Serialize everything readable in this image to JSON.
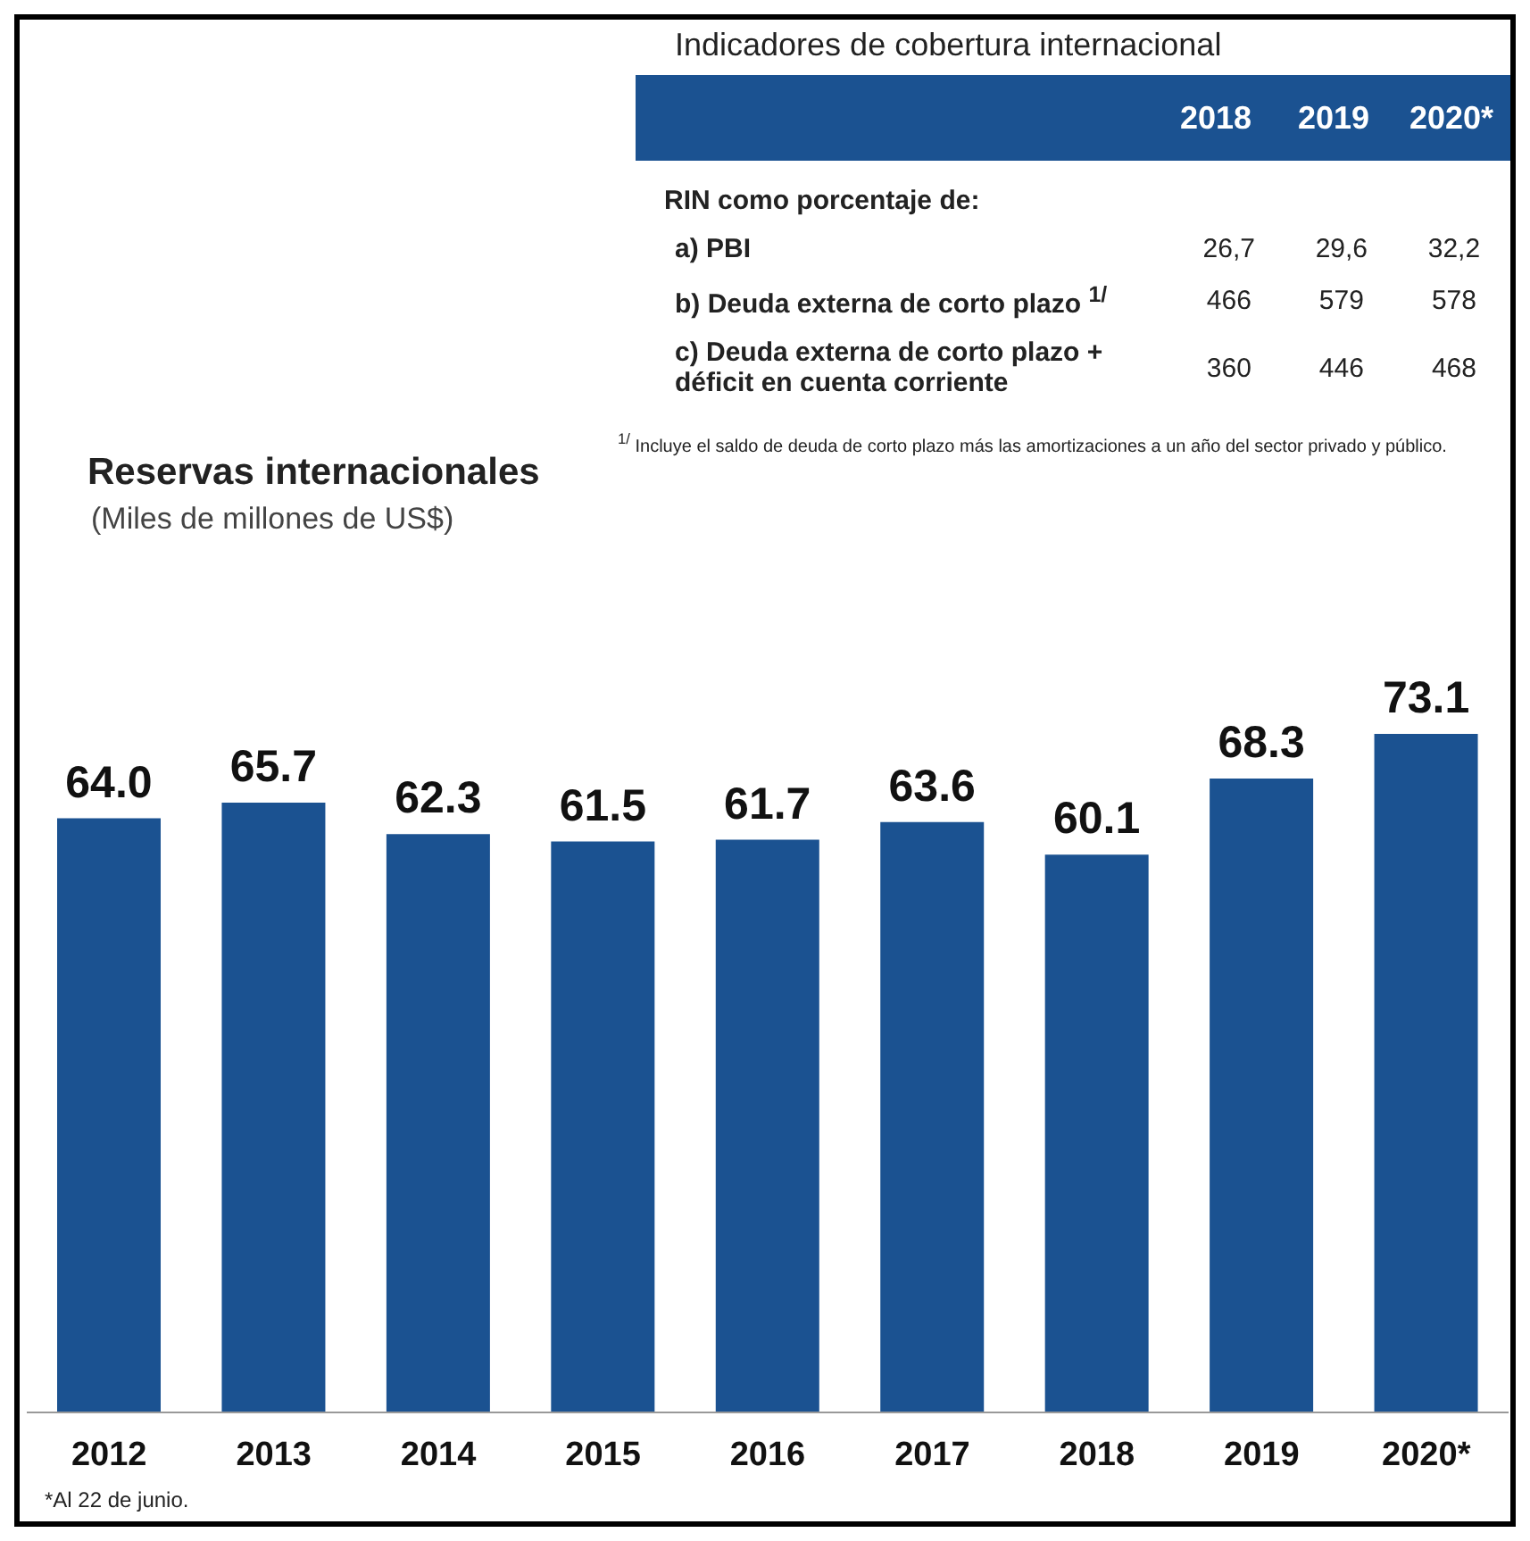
{
  "chart_data": [
    {
      "type": "bar",
      "title": "Reservas internacionales",
      "subtitle": "(Miles de millones de US$)",
      "categories": [
        "2012",
        "2013",
        "2014",
        "2015",
        "2016",
        "2017",
        "2018",
        "2019",
        "2020*"
      ],
      "values": [
        64.0,
        65.7,
        62.3,
        61.5,
        61.7,
        63.6,
        60.1,
        68.3,
        73.1
      ],
      "value_labels": [
        "64.0",
        "65.7",
        "62.3",
        "61.5",
        "61.7",
        "63.6",
        "60.1",
        "68.3",
        "73.1"
      ],
      "color": "#1b5291",
      "tick_labels": "x",
      "annotations": [
        "*Al 22 de junio."
      ]
    },
    {
      "type": "other",
      "title": "Indicadores de cobertura internacional",
      "categories": [
        "2018",
        "2019",
        "2020*"
      ],
      "subtitle": "RIN como porcentaje de:",
      "y_categories": [
        "a)  PBI",
        "b)  Deuda externa de corto plazo $^{1/}$",
        "c)  Deuda externa de corto plazo + déficit en cuenta corriente"
      ],
      "cell_labels": [
        [
          "26,7",
          "29,6",
          "32,2"
        ],
        [
          "466",
          "579",
          "578"
        ],
        [
          "360",
          "446",
          "468"
        ]
      ],
      "color": "#1b5291",
      "annotations": [
        "$^{1/}$ Incluye el saldo de deuda de corto plazo más las amortizaciones a un año del sector privado y público."
      ]
    }
  ]
}
